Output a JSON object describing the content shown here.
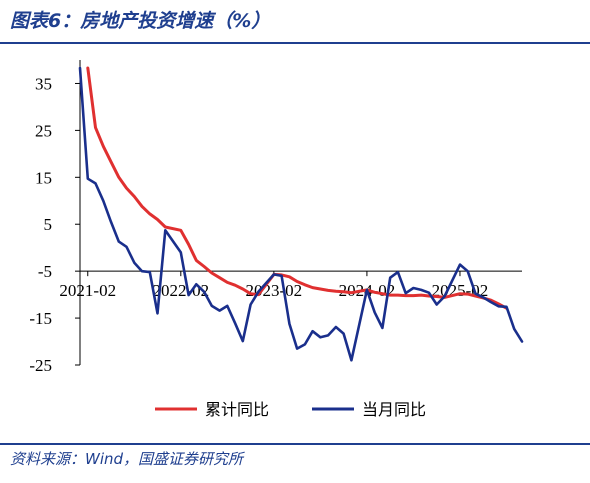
{
  "header": {
    "title": "图表6：房地产投资增速（%）"
  },
  "footer": {
    "source": "资料来源：Wind，国盛证券研究所"
  },
  "colors": {
    "brand": "#1f3f8f",
    "cumulative": "#e03030",
    "monthly": "#1a2f8c"
  },
  "chart_data": {
    "type": "line",
    "title": "图表6：房地产投资增速（%）",
    "xlabel": "",
    "ylabel": "",
    "ylim": [
      -25,
      40
    ],
    "yticks": [
      35,
      25,
      15,
      5,
      -5,
      -15,
      -25
    ],
    "x_start": "2021-01",
    "x_end": "2025-10",
    "xticks": [
      "2021-02",
      "2022-02",
      "2023-02",
      "2024-02",
      "2025-02"
    ],
    "grid": false,
    "legend": "bottom",
    "series": [
      {
        "name": "累计同比",
        "color": "#e03030",
        "points": [
          [
            "2021-02",
            38.3
          ],
          [
            "2021-03",
            25.6
          ],
          [
            "2021-04",
            21.6
          ],
          [
            "2021-05",
            18.3
          ],
          [
            "2021-06",
            15.0
          ],
          [
            "2021-07",
            12.7
          ],
          [
            "2021-08",
            10.9
          ],
          [
            "2021-09",
            8.8
          ],
          [
            "2021-10",
            7.2
          ],
          [
            "2021-11",
            6.0
          ],
          [
            "2021-12",
            4.4
          ],
          [
            "2022-02",
            3.7
          ],
          [
            "2022-03",
            0.7
          ],
          [
            "2022-04",
            -2.7
          ],
          [
            "2022-05",
            -4.0
          ],
          [
            "2022-06",
            -5.4
          ],
          [
            "2022-07",
            -6.4
          ],
          [
            "2022-08",
            -7.4
          ],
          [
            "2022-09",
            -8.0
          ],
          [
            "2022-10",
            -8.8
          ],
          [
            "2022-11",
            -9.8
          ],
          [
            "2022-12",
            -10.0
          ],
          [
            "2023-02",
            -5.7
          ],
          [
            "2023-03",
            -5.8
          ],
          [
            "2023-04",
            -6.2
          ],
          [
            "2023-05",
            -7.2
          ],
          [
            "2023-06",
            -7.9
          ],
          [
            "2023-07",
            -8.5
          ],
          [
            "2023-08",
            -8.8
          ],
          [
            "2023-09",
            -9.1
          ],
          [
            "2023-10",
            -9.3
          ],
          [
            "2023-11",
            -9.4
          ],
          [
            "2023-12",
            -9.6
          ],
          [
            "2024-02",
            -9.0
          ],
          [
            "2024-03",
            -9.5
          ],
          [
            "2024-04",
            -9.8
          ],
          [
            "2024-05",
            -10.1
          ],
          [
            "2024-06",
            -10.1
          ],
          [
            "2024-07",
            -10.2
          ],
          [
            "2024-08",
            -10.2
          ],
          [
            "2024-09",
            -10.1
          ],
          [
            "2024-10",
            -10.3
          ],
          [
            "2024-11",
            -10.4
          ],
          [
            "2024-12",
            -10.6
          ],
          [
            "2025-02",
            -9.8
          ],
          [
            "2025-03",
            -9.9
          ],
          [
            "2025-04",
            -10.3
          ],
          [
            "2025-05",
            -10.7
          ],
          [
            "2025-06",
            -11.2
          ],
          [
            "2025-07",
            -12.0
          ],
          [
            "2025-08",
            -12.9
          ]
        ]
      },
      {
        "name": "当月同比",
        "color": "#1a2f8c",
        "points": [
          [
            "2021-01",
            38.3
          ],
          [
            "2021-02",
            14.7
          ],
          [
            "2021-03",
            13.7
          ],
          [
            "2021-04",
            10.0
          ],
          [
            "2021-05",
            5.5
          ],
          [
            "2021-06",
            1.3
          ],
          [
            "2021-07",
            0.2
          ],
          [
            "2021-08",
            -3.2
          ],
          [
            "2021-09",
            -5.0
          ],
          [
            "2021-10",
            -5.2
          ],
          [
            "2021-11",
            -14.0
          ],
          [
            "2021-12",
            3.7
          ],
          [
            "2022-02",
            -1.0
          ],
          [
            "2022-03",
            -10.1
          ],
          [
            "2022-04",
            -7.8
          ],
          [
            "2022-05",
            -9.4
          ],
          [
            "2022-06",
            -12.4
          ],
          [
            "2022-07",
            -13.4
          ],
          [
            "2022-08",
            -12.4
          ],
          [
            "2022-09",
            -16.1
          ],
          [
            "2022-10",
            -19.9
          ],
          [
            "2022-11",
            -12.1
          ],
          [
            "2022-12",
            -9.4
          ],
          [
            "2023-02",
            -5.7
          ],
          [
            "2023-03",
            -6.0
          ],
          [
            "2023-04",
            -16.2
          ],
          [
            "2023-05",
            -21.5
          ],
          [
            "2023-06",
            -20.6
          ],
          [
            "2023-07",
            -17.8
          ],
          [
            "2023-08",
            -19.1
          ],
          [
            "2023-09",
            -18.7
          ],
          [
            "2023-10",
            -16.9
          ],
          [
            "2023-11",
            -18.3
          ],
          [
            "2023-12",
            -24.0
          ],
          [
            "2024-02",
            -9.0
          ],
          [
            "2024-03",
            -13.8
          ],
          [
            "2024-04",
            -17.1
          ],
          [
            "2024-05",
            -6.4
          ],
          [
            "2024-06",
            -5.2
          ],
          [
            "2024-07",
            -9.7
          ],
          [
            "2024-08",
            -8.6
          ],
          [
            "2024-09",
            -9.0
          ],
          [
            "2024-10",
            -9.6
          ],
          [
            "2024-11",
            -12.1
          ],
          [
            "2024-12",
            -10.4
          ],
          [
            "2025-02",
            -3.6
          ],
          [
            "2025-03",
            -5.0
          ],
          [
            "2025-04",
            -9.8
          ],
          [
            "2025-05",
            -10.6
          ],
          [
            "2025-06",
            -11.6
          ],
          [
            "2025-07",
            -12.5
          ],
          [
            "2025-08",
            -12.6
          ],
          [
            "2025-09",
            -17.3
          ],
          [
            "2025-10",
            -20.0
          ]
        ]
      }
    ]
  }
}
